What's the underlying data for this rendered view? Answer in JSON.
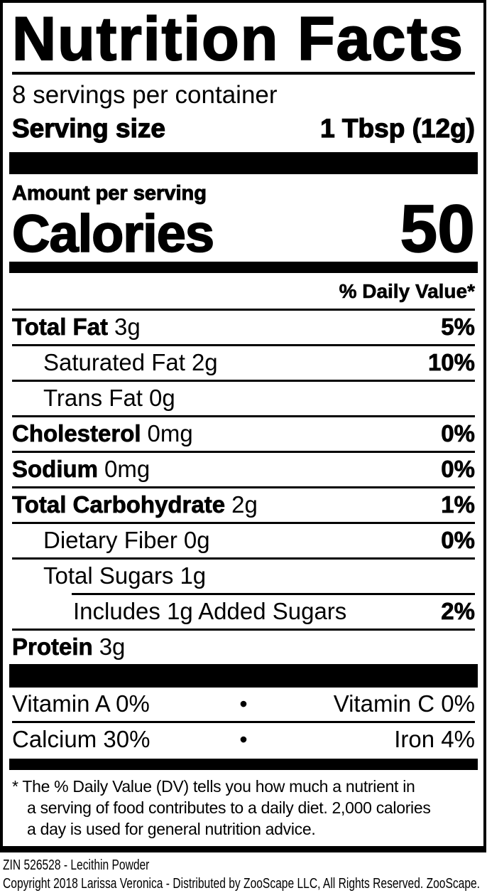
{
  "colors": {
    "ink": "#000000",
    "background": "#ffffff"
  },
  "label": {
    "title": "Nutrition Facts",
    "servings_per_container": "8 servings per container",
    "serving_size_label": "Serving size",
    "serving_size_value": "1 Tbsp (12g)",
    "amount_per_serving": "Amount per serving",
    "calories_label": "Calories",
    "calories_value": "50",
    "daily_value_header": "% Daily Value*",
    "rows": [
      {
        "name": "Total Fat",
        "amount": "3g",
        "dv": "5%",
        "level": 0
      },
      {
        "name": "Saturated Fat",
        "amount": "2g",
        "dv": "10%",
        "level": 1
      },
      {
        "name": "Trans Fat",
        "amount": "0g",
        "dv": "",
        "level": 1
      },
      {
        "name": "Cholesterol",
        "amount": "0mg",
        "dv": "0%",
        "level": 0
      },
      {
        "name": "Sodium",
        "amount": "0mg",
        "dv": "0%",
        "level": 0
      },
      {
        "name": "Total Carbohydrate",
        "amount": "2g",
        "dv": "1%",
        "level": 0
      },
      {
        "name": "Dietary Fiber",
        "amount": "0g",
        "dv": "0%",
        "level": 1
      },
      {
        "name": "Total Sugars",
        "amount": "1g",
        "dv": "",
        "level": 1
      },
      {
        "name": "Includes 1g Added Sugars",
        "amount": "",
        "dv": "2%",
        "level": 2
      },
      {
        "name": "Protein",
        "amount": "3g",
        "dv": "",
        "level": 0
      }
    ],
    "separator_dot": "•",
    "micronutrients": [
      {
        "left": "Vitamin A 0%",
        "right": "Vitamin C 0%"
      },
      {
        "left": "Calcium 30%",
        "right": "Iron 4%"
      }
    ],
    "footnote_lines": [
      "* The % Daily Value (DV) tells you how much a nutrient in",
      "a serving of food contributes to a daily diet. 2,000 calories",
      "a day is used for general nutrition advice."
    ]
  },
  "footer": {
    "zin_line": "ZIN 526528 - Lecithin Powder",
    "copyright_line": "Copyright 2018 Larissa Veronica - Distributed by ZooScape LLC, All Rights Reserved. ZooScape."
  }
}
